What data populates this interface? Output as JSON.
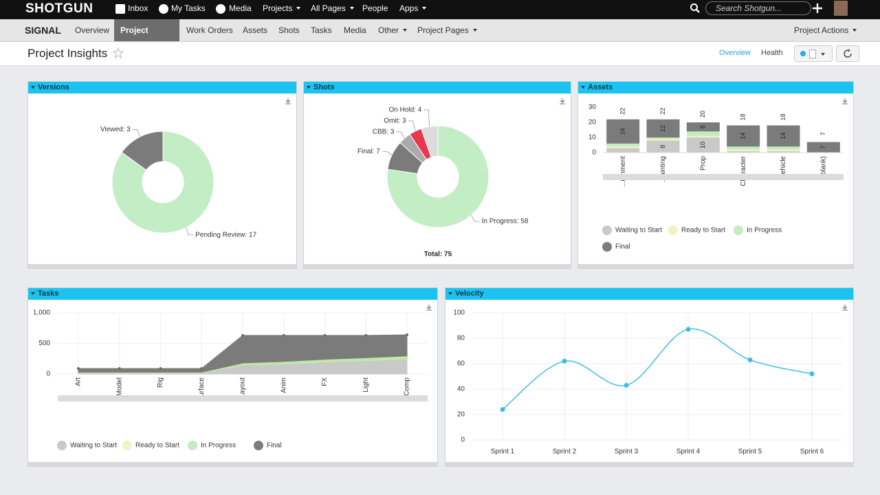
{
  "nav": {
    "brand": "SHOTGUN",
    "items": [
      "Inbox",
      "My Tasks",
      "Media",
      "Projects",
      "All Pages",
      "People",
      "Apps"
    ],
    "search": "Search Shotgun..."
  },
  "subnav": {
    "project": "SIGNAL",
    "items": [
      "Overview",
      "Project Insights",
      "Work Orders",
      "Assets",
      "Shots",
      "Tasks",
      "Media",
      "Other",
      "Project Pages"
    ],
    "actions": "Project Actions"
  },
  "header": {
    "title": "Project Insights",
    "tabs": [
      "Overview",
      "Health"
    ]
  },
  "widgets": [
    {
      "title": "Versions",
      "chart_data": {
        "type": "pie",
        "values": [
          17,
          3
        ],
        "value_labels": [
          "Pending Review: 17",
          "Viewed: 3"
        ],
        "colors": [
          "#c3edc4",
          "#7b7b7b"
        ]
      }
    },
    {
      "title": "Shots",
      "chart_data": {
        "type": "pie",
        "values": [
          58,
          7,
          3,
          3,
          4
        ],
        "value_labels": [
          "In Progress: 58",
          "Final: 7",
          "CBB: 3",
          "Omit: 3",
          "On Hold: 4"
        ],
        "colors": [
          "#c3edc4",
          "#7b7b7b",
          "#ababab",
          "#e8384f",
          "#dcdcdc"
        ],
        "total_label": "Total: 75"
      }
    },
    {
      "title": "Assets",
      "chart_data": {
        "type": "stacked_bar",
        "categories": [
          "...ronment",
          "...ainting",
          "Prop",
          "Character",
          "Vehicle",
          "(blank)"
        ],
        "series": [
          {
            "name": "Waiting to Start",
            "color": "#c9c9c9",
            "values": [
              3,
              8,
              10,
              1,
              1,
              0
            ]
          },
          {
            "name": "Ready to Start",
            "color": "#f4f1c6",
            "values": [
              1,
              1,
              1,
              1,
              1,
              0
            ]
          },
          {
            "name": "In Progress",
            "color": "#c3ecc0",
            "values": [
              2,
              1,
              3,
              2,
              2,
              0
            ]
          },
          {
            "name": "Final",
            "color": "#7b7b7b",
            "values": [
              16,
              12,
              6,
              14,
              14,
              7
            ]
          }
        ],
        "totals": [
          22,
          22,
          20,
          18,
          18,
          7
        ],
        "ylim": [
          0,
          30
        ],
        "yticks": [
          0,
          10,
          20,
          30
        ]
      }
    },
    {
      "title": "Tasks",
      "chart_data": {
        "type": "stacked_area",
        "categories": [
          "Art",
          "Model",
          "Rig",
          "Surface",
          "Layout",
          "Anim",
          "FX",
          "Light",
          "Comp"
        ],
        "series": [
          {
            "name": "Waiting to Start",
            "color": "#c9c9c9",
            "values": [
              20,
              20,
              20,
              20,
              150,
              170,
              200,
              220,
              245
            ]
          },
          {
            "name": "Ready to Start",
            "color": "#f4f1c6",
            "values": [
              5,
              5,
              5,
              5,
              10,
              10,
              10,
              10,
              10
            ]
          },
          {
            "name": "In Progress",
            "color": "#c3ecc0",
            "values": [
              5,
              5,
              5,
              5,
              20,
              25,
              30,
              35,
              40
            ]
          },
          {
            "name": "Final",
            "color": "#7b7b7b",
            "values": [
              60,
              60,
              60,
              60,
              450,
              425,
              390,
              365,
              345
            ]
          }
        ],
        "ylim": [
          0,
          1000
        ],
        "yticks": [
          0,
          500,
          {
            "value": 1000,
            "label": "1,000"
          }
        ]
      }
    },
    {
      "title": "Velocity",
      "chart_data": {
        "type": "line",
        "categories": [
          "Sprint 1",
          "Sprint 2",
          "Sprint 3",
          "Sprint 4",
          "Sprint 5",
          "Sprint 6"
        ],
        "series": [
          {
            "color": "#3bbde9",
            "values": [
              24,
              62,
              43,
              87,
              63,
              52
            ]
          }
        ],
        "ylim": [
          0,
          100
        ],
        "yticks": [
          0,
          20,
          40,
          60,
          80,
          100
        ]
      }
    }
  ]
}
